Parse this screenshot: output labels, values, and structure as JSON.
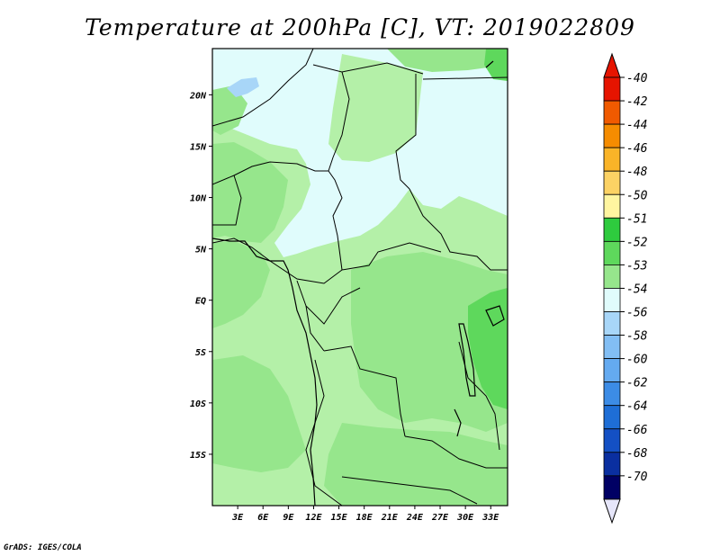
{
  "title": "Temperature at 200hPa [C], VT: 2019022809",
  "credit": "GrADS: IGES/COLA",
  "map": {
    "lon_range": [
      0,
      35
    ],
    "lat_range": [
      -20,
      24.5
    ],
    "lon_ticks": [
      "3E",
      "6E",
      "9E",
      "12E",
      "15E",
      "18E",
      "21E",
      "24E",
      "27E",
      "30E",
      "33E"
    ],
    "lat_ticks": [
      "20N",
      "15N",
      "10N",
      "5N",
      "EQ",
      "5S",
      "10S",
      "15S"
    ],
    "background_color": "#b4f0a8"
  },
  "colorbar": {
    "labels": [
      "-40",
      "-42",
      "-44",
      "-46",
      "-48",
      "-50",
      "-51",
      "-52",
      "-53",
      "-54",
      "-56",
      "-58",
      "-60",
      "-62",
      "-64",
      "-66",
      "-68",
      "-70"
    ],
    "colors": [
      "#e61400",
      "#f05a00",
      "#f58c00",
      "#fab428",
      "#fcd264",
      "#fff5a0",
      "#2ecb3e",
      "#5ed85c",
      "#96e68c",
      "#e0fcfc",
      "#a8d6f8",
      "#82bef4",
      "#64aaf0",
      "#3c8ce6",
      "#1e6ed6",
      "#1450c4",
      "#0a2fa0",
      "#000064"
    ],
    "top_color": "#e61400",
    "bottom_color": "#e6e6fa"
  }
}
